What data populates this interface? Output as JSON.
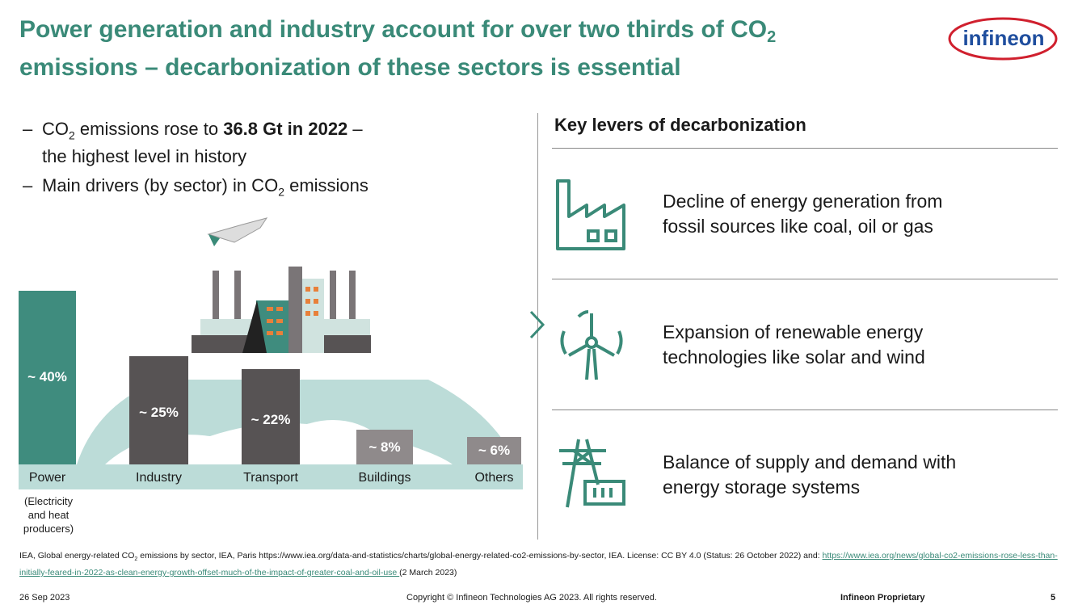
{
  "title": {
    "line1": "Power generation and industry account for over two thirds of CO",
    "line1_sub": "2",
    "line2": "emissions – decarbonization of these sectors is essential"
  },
  "logo": {
    "text": "infineon"
  },
  "bullets": [
    {
      "dash": "–",
      "pre": "CO",
      "sub": "2",
      "mid": " emissions rose to ",
      "bold": "36.8 Gt in 2022",
      "post": " –"
    },
    {
      "text": "the highest level in history"
    },
    {
      "dash": "–",
      "pre": "Main drivers (by sector) in CO",
      "sub": "2",
      "post": " emissions"
    }
  ],
  "chart_data": {
    "type": "bar",
    "title": "Main drivers (by sector) in CO2 emissions",
    "categories": [
      "Power",
      "Industry",
      "Transport",
      "Buildings",
      "Others"
    ],
    "values": [
      40,
      25,
      22,
      8,
      6
    ],
    "labels": [
      "~ 40%",
      "~ 25%",
      "~ 22%",
      "~ 8%",
      "~ 6%"
    ],
    "colors": [
      "#3f8c7e",
      "#575354",
      "#575354",
      "#8f8a8b",
      "#8f8a8b"
    ],
    "category_note": "(Electricity and heat producers)",
    "ylabel": "",
    "xlabel": "",
    "ylim": [
      0,
      40
    ]
  },
  "levers": {
    "heading": "Key levers of decarbonization",
    "items": [
      {
        "icon": "factory-icon",
        "line1": "Decline of energy generation from",
        "line2": "fossil sources like coal, oil or gas"
      },
      {
        "icon": "wind-turbine-icon",
        "line1": "Expansion of renewable energy",
        "line2": "technologies like solar and wind"
      },
      {
        "icon": "power-pylon-battery-icon",
        "line1": "Balance of supply and demand with",
        "line2": "energy storage systems"
      }
    ]
  },
  "source": {
    "pre": "IEA, Global energy-related CO",
    "sub": "2",
    "mid": " emissions by sector, IEA, Paris https://www.iea.org/data-and-statistics/charts/global-energy-related-co2-emissions-by-sector, IEA. License: CC BY 4.0 (Status: 26 October 2022) and: ",
    "link": "https://www.iea.org/news/global-co2-emissions-rose-less-than-initially-feared-in-2022-as-clean-energy-growth-offset-much-of-the-impact-of-greater-coal-and-oil-use ",
    "post": "(2 March 2023)"
  },
  "footer": {
    "date": "26 Sep 2023",
    "copyright": "Copyright © Infineon Technologies AG 2023. All rights reserved.",
    "classification": "Infineon Proprietary",
    "page": "5"
  }
}
